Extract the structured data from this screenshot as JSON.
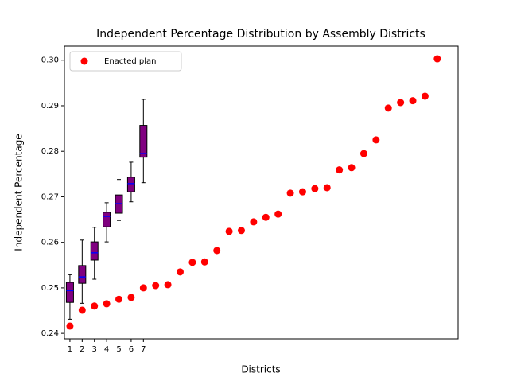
{
  "chart_data": {
    "type": "box",
    "title": "Independent Percentage Distribution by Assembly Districts",
    "xlabel": "Districts",
    "ylabel": "Independent Percentage",
    "xlim": [
      0.55,
      32.7
    ],
    "ylim": [
      0.2388,
      0.3031
    ],
    "xticks": [
      1,
      2,
      3,
      4,
      5,
      6,
      7
    ],
    "yticks": [
      0.24,
      0.25,
      0.26,
      0.27,
      0.28,
      0.29,
      {
        "value": 0.3,
        "label": "0.30"
      }
    ],
    "box_color": "#800080",
    "median_color": "#0000ff",
    "boxes": [
      {
        "x": 1,
        "whislo": 0.2431,
        "q1": 0.2468,
        "med": 0.2494,
        "q3": 0.2512,
        "whishi": 0.2529
      },
      {
        "x": 2,
        "whislo": 0.2466,
        "q1": 0.251,
        "med": 0.2524,
        "q3": 0.2549,
        "whishi": 0.2605
      },
      {
        "x": 3,
        "whislo": 0.2519,
        "q1": 0.2561,
        "med": 0.2577,
        "q3": 0.2601,
        "whishi": 0.2633
      },
      {
        "x": 4,
        "whislo": 0.2601,
        "q1": 0.2634,
        "med": 0.2657,
        "q3": 0.2666,
        "whishi": 0.2687
      },
      {
        "x": 5,
        "whislo": 0.2648,
        "q1": 0.2664,
        "med": 0.2685,
        "q3": 0.2704,
        "whishi": 0.2738
      },
      {
        "x": 6,
        "whislo": 0.2689,
        "q1": 0.2711,
        "med": 0.2729,
        "q3": 0.2743,
        "whishi": 0.2776
      },
      {
        "x": 7,
        "whislo": 0.2731,
        "q1": 0.2787,
        "med": 0.2795,
        "q3": 0.2857,
        "whishi": 0.2914
      }
    ],
    "scatter": {
      "type": "scatter",
      "name": "Enacted plan",
      "color": "#ff0000",
      "x": [
        1,
        2,
        3,
        4,
        5,
        6,
        7,
        8,
        9,
        10,
        11,
        12,
        13,
        14,
        15,
        16,
        17,
        18,
        19,
        20,
        21,
        22,
        23,
        24,
        25,
        26,
        27,
        28,
        29,
        30,
        31
      ],
      "values": [
        0.2416,
        0.2451,
        0.246,
        0.2465,
        0.2475,
        0.2479,
        0.25,
        0.2505,
        0.2507,
        0.2535,
        0.2556,
        0.2557,
        0.2582,
        0.2624,
        0.2626,
        0.2645,
        0.2655,
        0.2662,
        0.2708,
        0.2711,
        0.2718,
        0.272,
        0.2759,
        0.2764,
        0.2795,
        0.2825,
        0.2895,
        0.2907,
        0.2911,
        0.2921,
        0.3003
      ]
    },
    "legend": "upper left"
  }
}
